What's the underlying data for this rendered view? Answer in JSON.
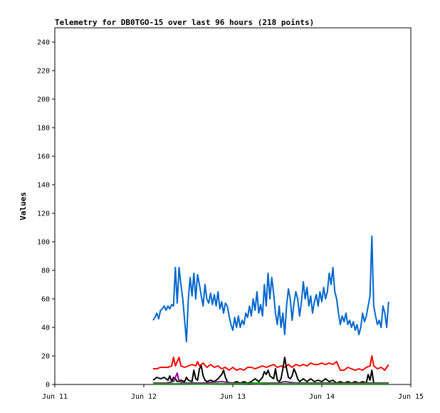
{
  "chart_data": {
    "type": "line",
    "title": "Telemetry for DB0TGO-15 over last 96 hours (218 points)",
    "xlabel": "",
    "ylabel": "Values",
    "x_ticks": [
      "Jun 11",
      "Jun 12",
      "Jun 13",
      "Jun 14",
      "Jun 15"
    ],
    "xlim": [
      0,
      96
    ],
    "ylim": [
      0,
      250
    ],
    "y_ticks": [
      0,
      20,
      40,
      60,
      80,
      100,
      120,
      140,
      160,
      180,
      200,
      220,
      240
    ],
    "grid": false,
    "legend": "none",
    "series": [
      {
        "color": "#0066cc",
        "points": [
          [
            26.5,
            45
          ],
          [
            27,
            47
          ],
          [
            27.5,
            50
          ],
          [
            28,
            46
          ],
          [
            28.5,
            52
          ],
          [
            29,
            53
          ],
          [
            29.5,
            55
          ],
          [
            30,
            52
          ],
          [
            30.5,
            55
          ],
          [
            31,
            53
          ],
          [
            31.5,
            56
          ],
          [
            32,
            55
          ],
          [
            32.5,
            82
          ],
          [
            33,
            57
          ],
          [
            33.5,
            82
          ],
          [
            34,
            70
          ],
          [
            34.5,
            60
          ],
          [
            35,
            45
          ],
          [
            35.5,
            30
          ],
          [
            36,
            60
          ],
          [
            36.5,
            75
          ],
          [
            37,
            62
          ],
          [
            37.5,
            78
          ],
          [
            38,
            60
          ],
          [
            38.5,
            77
          ],
          [
            39,
            70
          ],
          [
            39.5,
            62
          ],
          [
            40,
            55
          ],
          [
            40.5,
            70
          ],
          [
            41,
            60
          ],
          [
            41.5,
            57
          ],
          [
            42,
            64
          ],
          [
            42.5,
            56
          ],
          [
            43,
            63
          ],
          [
            43.5,
            55
          ],
          [
            44,
            65
          ],
          [
            44.5,
            53
          ],
          [
            45,
            58
          ],
          [
            45.5,
            50
          ],
          [
            46,
            57
          ],
          [
            46.5,
            55
          ],
          [
            47,
            48
          ],
          [
            47.5,
            42
          ],
          [
            48,
            38
          ],
          [
            48.5,
            47
          ],
          [
            49,
            40
          ],
          [
            49.5,
            48
          ],
          [
            50,
            40
          ],
          [
            50.5,
            45
          ],
          [
            51,
            42
          ],
          [
            51.5,
            50
          ],
          [
            52,
            47
          ],
          [
            52.5,
            55
          ],
          [
            53,
            48
          ],
          [
            53.5,
            60
          ],
          [
            54,
            52
          ],
          [
            54.5,
            65
          ],
          [
            55,
            50
          ],
          [
            55.5,
            56
          ],
          [
            56,
            48
          ],
          [
            56.5,
            70
          ],
          [
            57,
            55
          ],
          [
            57.5,
            78
          ],
          [
            58,
            60
          ],
          [
            58.5,
            75
          ],
          [
            59,
            64
          ],
          [
            59.5,
            50
          ],
          [
            60,
            42
          ],
          [
            60.5,
            55
          ],
          [
            61,
            40
          ],
          [
            61.5,
            50
          ],
          [
            62,
            35
          ],
          [
            62.5,
            55
          ],
          [
            63,
            67
          ],
          [
            63.5,
            60
          ],
          [
            64,
            45
          ],
          [
            64.5,
            57
          ],
          [
            65,
            65
          ],
          [
            65.5,
            60
          ],
          [
            66,
            48
          ],
          [
            66.5,
            58
          ],
          [
            67,
            72
          ],
          [
            67.5,
            60
          ],
          [
            68,
            68
          ],
          [
            68.5,
            55
          ],
          [
            69,
            62
          ],
          [
            69.5,
            50
          ],
          [
            70,
            58
          ],
          [
            70.5,
            63
          ],
          [
            71,
            55
          ],
          [
            71.5,
            65
          ],
          [
            72,
            58
          ],
          [
            72.5,
            68
          ],
          [
            73,
            60
          ],
          [
            73.5,
            65
          ],
          [
            74,
            78
          ],
          [
            74.5,
            70
          ],
          [
            75,
            82
          ],
          [
            75.5,
            65
          ],
          [
            76,
            60
          ],
          [
            76.5,
            50
          ],
          [
            77,
            42
          ],
          [
            77.5,
            48
          ],
          [
            78,
            44
          ],
          [
            78.5,
            50
          ],
          [
            79,
            42
          ],
          [
            79.5,
            45
          ],
          [
            80,
            40
          ],
          [
            80.5,
            44
          ],
          [
            81,
            38
          ],
          [
            81.5,
            42
          ],
          [
            82,
            35
          ],
          [
            82.5,
            40
          ],
          [
            83,
            50
          ],
          [
            83.5,
            44
          ],
          [
            84,
            48
          ],
          [
            84.5,
            55
          ],
          [
            85,
            62
          ],
          [
            85.5,
            104
          ],
          [
            86,
            55
          ],
          [
            86.5,
            48
          ],
          [
            87,
            42
          ],
          [
            87.5,
            45
          ],
          [
            88,
            40
          ],
          [
            88.5,
            55
          ],
          [
            89,
            50
          ],
          [
            89.5,
            40
          ],
          [
            90,
            58
          ]
        ]
      },
      {
        "color": "#ff0000",
        "points": [
          [
            26.5,
            11
          ],
          [
            27.5,
            11
          ],
          [
            28.5,
            12
          ],
          [
            29.5,
            12
          ],
          [
            30.5,
            12
          ],
          [
            31.5,
            13
          ],
          [
            32,
            19
          ],
          [
            32.5,
            13
          ],
          [
            33,
            16
          ],
          [
            33.5,
            19
          ],
          [
            34,
            13
          ],
          [
            35,
            12
          ],
          [
            36,
            13
          ],
          [
            37,
            14
          ],
          [
            38,
            13
          ],
          [
            38.5,
            16
          ],
          [
            39,
            13
          ],
          [
            40,
            15
          ],
          [
            41,
            12
          ],
          [
            42,
            14
          ],
          [
            43,
            12
          ],
          [
            44,
            13
          ],
          [
            45,
            11
          ],
          [
            46,
            12
          ],
          [
            47,
            10
          ],
          [
            48,
            12
          ],
          [
            49,
            10
          ],
          [
            50,
            11
          ],
          [
            51,
            10
          ],
          [
            52,
            12
          ],
          [
            53,
            12
          ],
          [
            54,
            11
          ],
          [
            55,
            12
          ],
          [
            56,
            13
          ],
          [
            57,
            12
          ],
          [
            58,
            13
          ],
          [
            59,
            14
          ],
          [
            60,
            12
          ],
          [
            61,
            13
          ],
          [
            62,
            12
          ],
          [
            63,
            14
          ],
          [
            64,
            12
          ],
          [
            65,
            14
          ],
          [
            66,
            13
          ],
          [
            67,
            14
          ],
          [
            68,
            13
          ],
          [
            69,
            15
          ],
          [
            70,
            14
          ],
          [
            71,
            14
          ],
          [
            72,
            15
          ],
          [
            73,
            14
          ],
          [
            74,
            15
          ],
          [
            75,
            14
          ],
          [
            76,
            16
          ],
          [
            76.5,
            13
          ],
          [
            77,
            10
          ],
          [
            78,
            10
          ],
          [
            79,
            12
          ],
          [
            80,
            11
          ],
          [
            81,
            10
          ],
          [
            82,
            11
          ],
          [
            83,
            10
          ],
          [
            84,
            12
          ],
          [
            85,
            13
          ],
          [
            85.5,
            20
          ],
          [
            86,
            13
          ],
          [
            87,
            11
          ],
          [
            88,
            12
          ],
          [
            89,
            10
          ],
          [
            90,
            14
          ]
        ]
      },
      {
        "color": "#000000",
        "points": [
          [
            26.5,
            3
          ],
          [
            27.5,
            5
          ],
          [
            28.5,
            4
          ],
          [
            29.5,
            5
          ],
          [
            30.5,
            3
          ],
          [
            31,
            6
          ],
          [
            31.5,
            2
          ],
          [
            32,
            5
          ],
          [
            32.5,
            4
          ],
          [
            33,
            2
          ],
          [
            34,
            3
          ],
          [
            35,
            2
          ],
          [
            35.5,
            5
          ],
          [
            36,
            3
          ],
          [
            37,
            2
          ],
          [
            37.5,
            10
          ],
          [
            38,
            4
          ],
          [
            38.5,
            3
          ],
          [
            39,
            11
          ],
          [
            39.5,
            13
          ],
          [
            40,
            6
          ],
          [
            40.5,
            3
          ],
          [
            41,
            2
          ],
          [
            42,
            3
          ],
          [
            43,
            2
          ],
          [
            44,
            4
          ],
          [
            45,
            7
          ],
          [
            45.5,
            10
          ],
          [
            46,
            5
          ],
          [
            46.5,
            2
          ],
          [
            47,
            1
          ],
          [
            48,
            1
          ],
          [
            49,
            2
          ],
          [
            50,
            1
          ],
          [
            51,
            2
          ],
          [
            52,
            1
          ],
          [
            53,
            2
          ],
          [
            54,
            4
          ],
          [
            55,
            2
          ],
          [
            56,
            5
          ],
          [
            56.5,
            9
          ],
          [
            57,
            7
          ],
          [
            57.5,
            10
          ],
          [
            58,
            6
          ],
          [
            58.5,
            5
          ],
          [
            59,
            4
          ],
          [
            59.5,
            11
          ],
          [
            60,
            3
          ],
          [
            60.5,
            2
          ],
          [
            61,
            4
          ],
          [
            61.5,
            11
          ],
          [
            62,
            19
          ],
          [
            62.5,
            11
          ],
          [
            63,
            5
          ],
          [
            63.5,
            4
          ],
          [
            64,
            6
          ],
          [
            64.5,
            11
          ],
          [
            65,
            8
          ],
          [
            65.5,
            4
          ],
          [
            66,
            2
          ],
          [
            67,
            4
          ],
          [
            68,
            2
          ],
          [
            69,
            4
          ],
          [
            70,
            2
          ],
          [
            71,
            3
          ],
          [
            72,
            2
          ],
          [
            73,
            4
          ],
          [
            74,
            2
          ],
          [
            75,
            3
          ],
          [
            76,
            1
          ],
          [
            77,
            2
          ],
          [
            78,
            1
          ],
          [
            79,
            2
          ],
          [
            80,
            1
          ],
          [
            81,
            2
          ],
          [
            82,
            1
          ],
          [
            83,
            2
          ],
          [
            84,
            1
          ],
          [
            84.5,
            7
          ],
          [
            85,
            3
          ],
          [
            85.5,
            10
          ],
          [
            86,
            1
          ],
          [
            87,
            1
          ],
          [
            88,
            1
          ],
          [
            89,
            1
          ],
          [
            90,
            1
          ]
        ]
      },
      {
        "color": "#990099",
        "points": [
          [
            26.5,
            1
          ],
          [
            30,
            1
          ],
          [
            32,
            2
          ],
          [
            33,
            8
          ],
          [
            33.5,
            2
          ],
          [
            35,
            1
          ],
          [
            40,
            1
          ],
          [
            45,
            2
          ],
          [
            48,
            1
          ],
          [
            52,
            1
          ],
          [
            55,
            1
          ],
          [
            58,
            1
          ],
          [
            60,
            1
          ],
          [
            62,
            2
          ],
          [
            65,
            1
          ],
          [
            70,
            1
          ],
          [
            75,
            1
          ],
          [
            80,
            1
          ],
          [
            85,
            1
          ],
          [
            90,
            1
          ]
        ]
      },
      {
        "color": "#00aa00",
        "points": [
          [
            26.5,
            0.5
          ],
          [
            35,
            0.5
          ],
          [
            40,
            0.3
          ],
          [
            45,
            0.5
          ],
          [
            50,
            0.5
          ],
          [
            55,
            1
          ],
          [
            58,
            0.5
          ],
          [
            60,
            0.5
          ],
          [
            65,
            0.5
          ],
          [
            70,
            0.5
          ],
          [
            75,
            0.5
          ],
          [
            80,
            0.5
          ],
          [
            85,
            0.5
          ],
          [
            90,
            0.5
          ]
        ]
      }
    ]
  }
}
